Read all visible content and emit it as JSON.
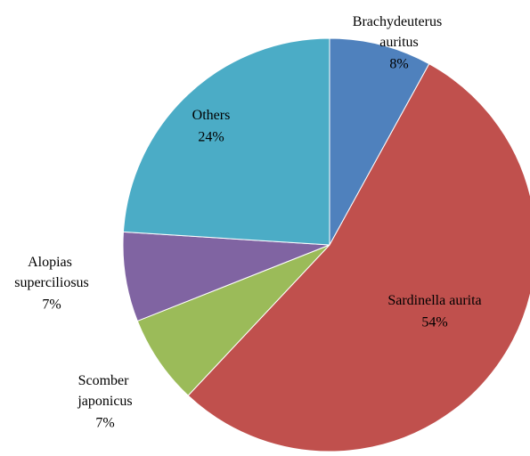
{
  "chart_data": {
    "type": "pie",
    "categories": [
      "Brachydeuterus auritus",
      "Sardinella aurita",
      "Scomber japonicus",
      "Alopias superciliosus",
      "Others"
    ],
    "values": [
      8,
      54,
      7,
      7,
      24
    ],
    "value_labels": [
      "8%",
      "54%",
      "7%",
      "7%",
      "24%"
    ],
    "colors": [
      "#4f81bd",
      "#c0504d",
      "#9bbb59",
      "#8064a2",
      "#4bacc6"
    ]
  }
}
